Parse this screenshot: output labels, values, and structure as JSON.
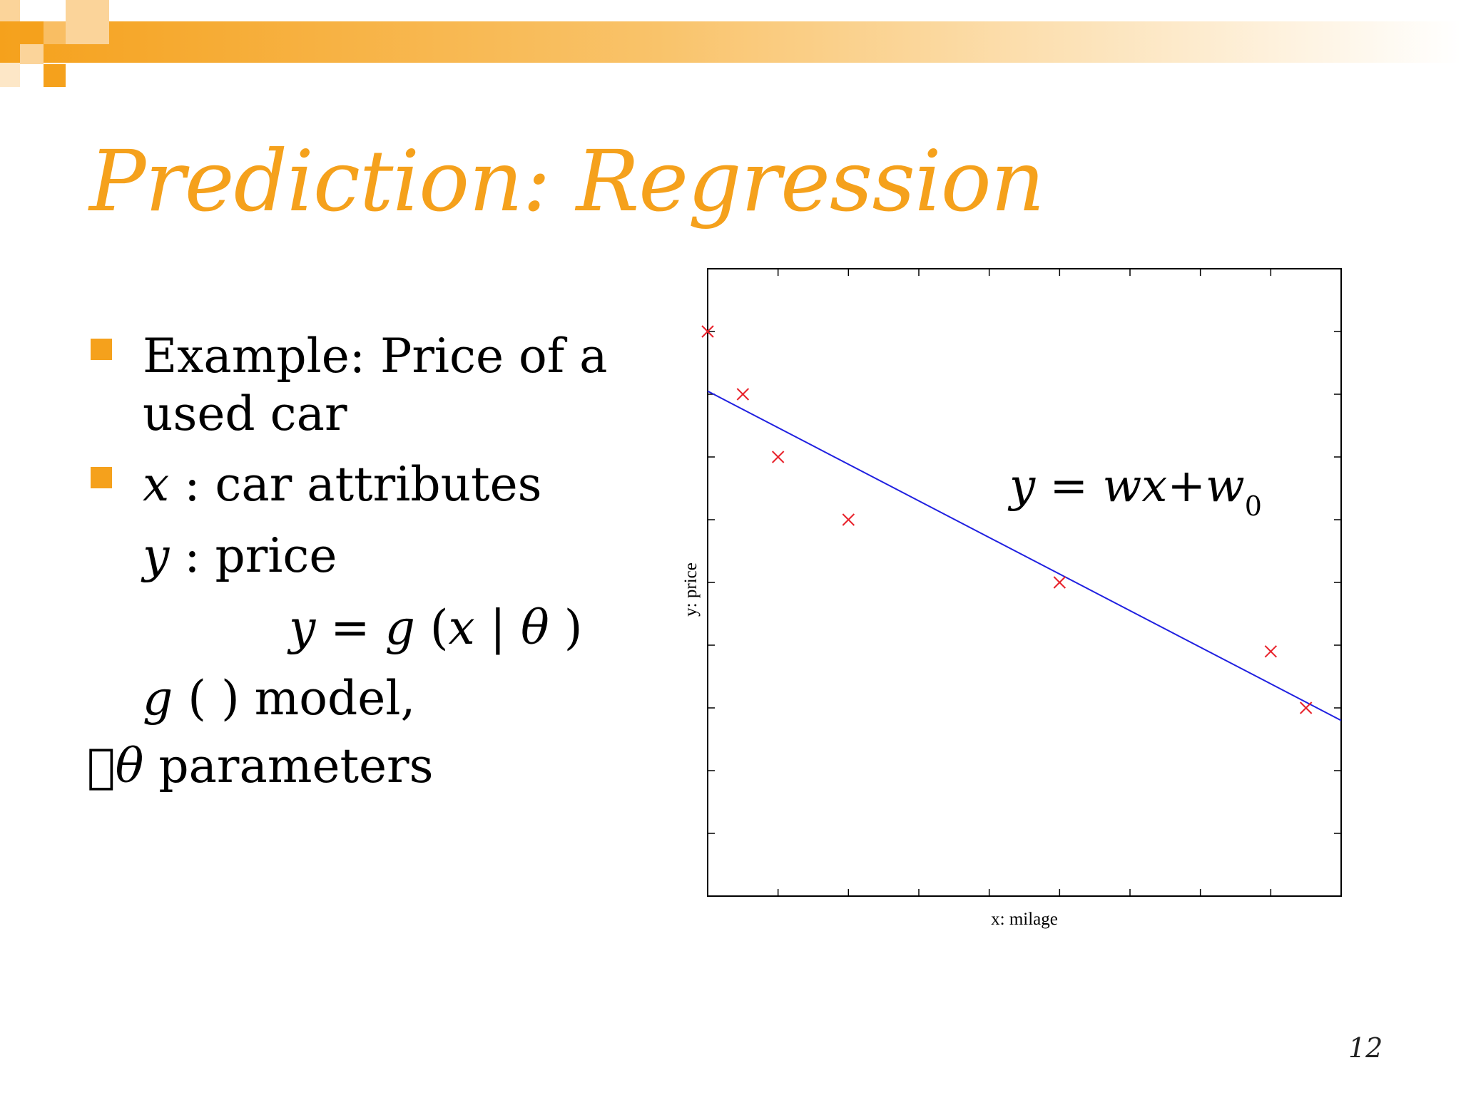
{
  "slide": {
    "title": "Prediction: Regression",
    "page_number": "12"
  },
  "bullets": [
    {
      "line1": "Example: Price of a",
      "line2": "used car"
    },
    {
      "var": "x",
      "text": " : car attributes"
    }
  ],
  "lines": {
    "y_var": "y",
    "y_text": " : price",
    "formula": {
      "y": "y",
      "eq": " = ",
      "g": "g",
      "open": " (",
      "x": "x",
      "bar": " | ",
      "theta": "θ",
      "close": "  )"
    },
    "g_line": {
      "g": "g",
      "text": " ( ) model,"
    },
    "theta_line": {
      "box": "",
      "theta": "θ",
      "text": " parameters"
    }
  },
  "equation": {
    "y": "y",
    "eq": " = ",
    "wx": "wx",
    "plus": "+",
    "w": "w",
    "sub": "0"
  },
  "chart_data": {
    "type": "scatter",
    "xlabel": "x: milage",
    "ylabel": "y: price",
    "xlim": [
      0,
      9
    ],
    "ylim": [
      0,
      10
    ],
    "points": [
      {
        "x": 0.0,
        "y": 9.0
      },
      {
        "x": 0.5,
        "y": 8.0
      },
      {
        "x": 1.0,
        "y": 7.0
      },
      {
        "x": 2.0,
        "y": 6.0
      },
      {
        "x": 5.0,
        "y": 5.0
      },
      {
        "x": 8.0,
        "y": 3.9
      },
      {
        "x": 8.5,
        "y": 3.0
      }
    ],
    "fit_line": {
      "x": [
        0,
        9
      ],
      "y": [
        8.05,
        2.8
      ]
    },
    "grid": false,
    "colors": {
      "points": "#E8212A",
      "line": "#2020E0",
      "axes": "#000000"
    }
  },
  "colors": {
    "accent": "#F5A11C"
  }
}
